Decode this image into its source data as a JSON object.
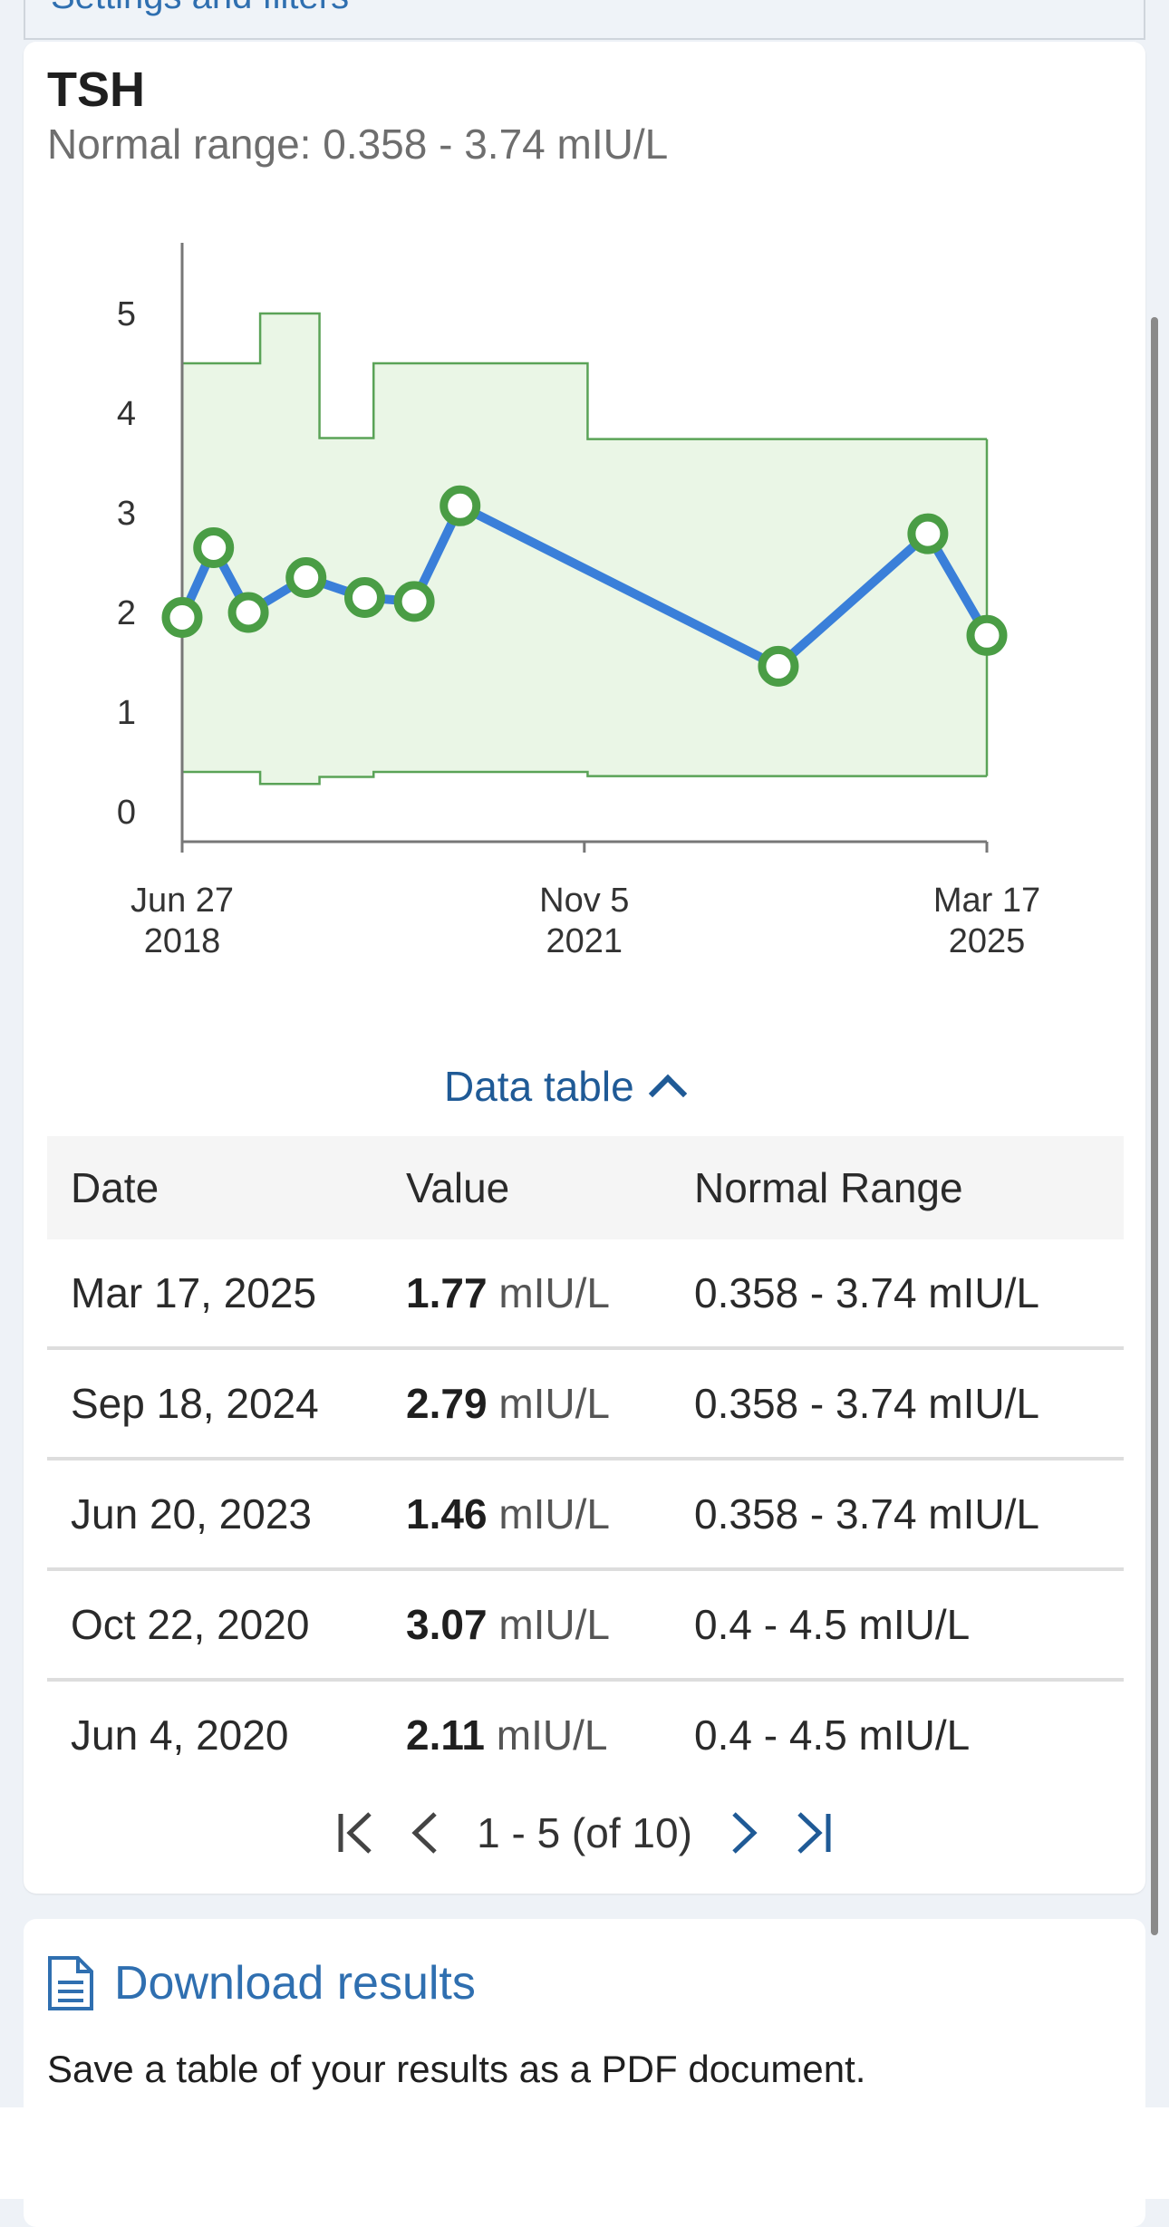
{
  "top_card": {
    "link_text": "Settings and filters"
  },
  "result": {
    "title": "TSH",
    "normal_range_text": "Normal range: 0.358 - 3.74 mIU/L"
  },
  "chart_data": {
    "type": "line",
    "title": "TSH",
    "y_ticks": [
      "0",
      "1",
      "2",
      "3",
      "4",
      "5"
    ],
    "ylim": [
      0,
      5.5
    ],
    "x_tick_labels": [
      {
        "line1": "Jun 27",
        "line2": "2018"
      },
      {
        "line1": "Nov 5",
        "line2": "2021"
      },
      {
        "line1": "Mar 17",
        "line2": "2025"
      }
    ],
    "x_axis_dates": [
      "2018-06-27",
      "2021-11-05",
      "2025-03-17"
    ],
    "series": [
      {
        "x": [
          "2018-06-27",
          "2018-10-01",
          "2019-01-15",
          "2019-07-10",
          "2020-01-05",
          "2020-06-04",
          "2020-10-22",
          "2023-06-20",
          "2024-09-18",
          "2025-03-17"
        ],
        "y": [
          1.95,
          2.65,
          2.0,
          2.35,
          2.15,
          2.11,
          3.07,
          1.46,
          2.79,
          1.77
        ]
      }
    ],
    "normal_range_band": [
      {
        "from": "2018-06-27",
        "to": "2019-02-20",
        "low": 0.4,
        "high": 4.5
      },
      {
        "from": "2019-02-20",
        "to": "2019-08-20",
        "low": 0.28,
        "high": 5.0
      },
      {
        "from": "2019-08-20",
        "to": "2020-02-01",
        "low": 0.35,
        "high": 3.75
      },
      {
        "from": "2020-02-01",
        "to": "2021-11-15",
        "low": 0.4,
        "high": 4.5
      },
      {
        "from": "2021-11-15",
        "to": "2025-03-17",
        "low": 0.358,
        "high": 3.74
      }
    ],
    "colors": {
      "line": "#3a7fd9",
      "points": "#4a9d45",
      "band_fill": "#eaf6e6",
      "band_stroke": "#5aa357",
      "axis": "#777777"
    }
  },
  "data_table": {
    "toggle_label": "Data table",
    "headers": [
      "Date",
      "Value",
      "Normal Range"
    ],
    "rows": [
      {
        "date": "Mar 17, 2025",
        "value": "1.77",
        "unit": "mIU/L",
        "range": "0.358 - 3.74 mIU/L"
      },
      {
        "date": "Sep 18, 2024",
        "value": "2.79",
        "unit": "mIU/L",
        "range": "0.358 - 3.74 mIU/L"
      },
      {
        "date": "Jun 20, 2023",
        "value": "1.46",
        "unit": "mIU/L",
        "range": "0.358 - 3.74 mIU/L"
      },
      {
        "date": "Oct 22, 2020",
        "value": "3.07",
        "unit": "mIU/L",
        "range": "0.4 - 4.5 mIU/L"
      },
      {
        "date": "Jun 4, 2020",
        "value": "2.11",
        "unit": "mIU/L",
        "range": "0.4 - 4.5 mIU/L"
      }
    ],
    "pager_text": "1 - 5 (of 10)"
  },
  "download": {
    "link_text": "Download results",
    "description": "Save a table of your results as a PDF document.",
    "icon": "document-icon"
  }
}
